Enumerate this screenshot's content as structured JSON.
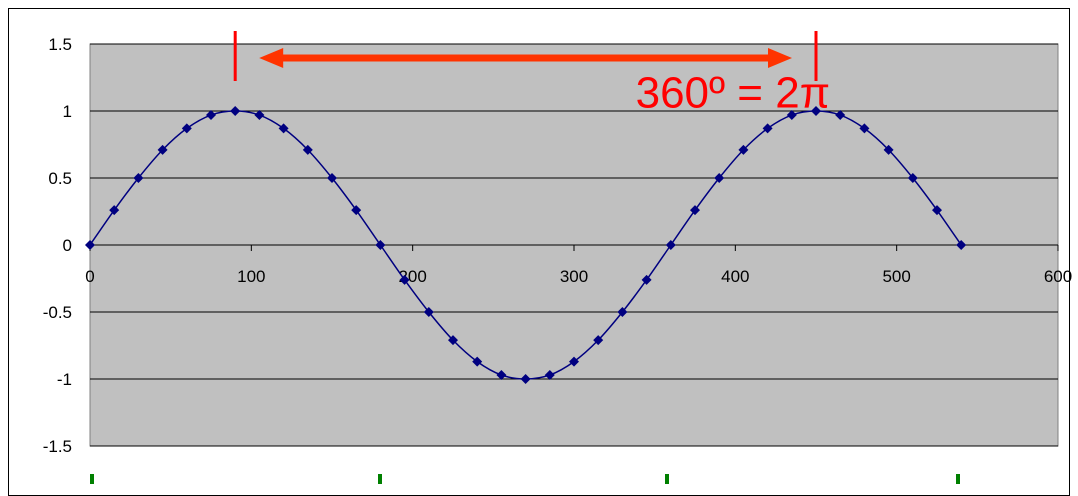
{
  "chart_data": {
    "type": "scatter",
    "title": "",
    "xlabel": "",
    "ylabel": "",
    "xlim": [
      0,
      600
    ],
    "ylim": [
      -1.5,
      1.5
    ],
    "x_ticks": [
      "0",
      "100",
      "200",
      "300",
      "400",
      "500",
      "600"
    ],
    "y_ticks": [
      "1.5",
      "1",
      "0.5",
      "0",
      "-0.5",
      "-1",
      "-1.5"
    ],
    "grid": "horizontal",
    "plot_background": "#c0c0c0",
    "series": [
      {
        "color": "#000080",
        "marker": "diamond",
        "line": "smooth",
        "x": [
          0,
          15,
          30,
          45,
          60,
          75,
          90,
          105,
          120,
          135,
          150,
          165,
          180,
          195,
          210,
          225,
          240,
          255,
          270,
          285,
          300,
          315,
          330,
          345,
          360,
          375,
          390,
          405,
          420,
          435,
          450,
          465,
          480,
          495,
          510,
          525,
          540
        ],
        "y": [
          0,
          0.26,
          0.5,
          0.71,
          0.87,
          0.97,
          1,
          0.97,
          0.87,
          0.71,
          0.5,
          0.26,
          0,
          -0.26,
          -0.5,
          -0.71,
          -0.87,
          -0.97,
          -1,
          -0.97,
          -0.87,
          -0.71,
          -0.5,
          -0.26,
          0,
          0.26,
          0.5,
          0.71,
          0.87,
          0.97,
          1,
          0.97,
          0.87,
          0.71,
          0.5,
          0.26,
          0
        ]
      }
    ],
    "annotations": [
      {
        "text": "360º = 2π",
        "x": 270,
        "y": 1.1,
        "color": "#ff0000"
      }
    ],
    "period_markers_x": [
      90,
      450
    ],
    "arrow_color": "#ff3300",
    "marker_color": "#ff0000",
    "green_tick_color": "#008000"
  }
}
